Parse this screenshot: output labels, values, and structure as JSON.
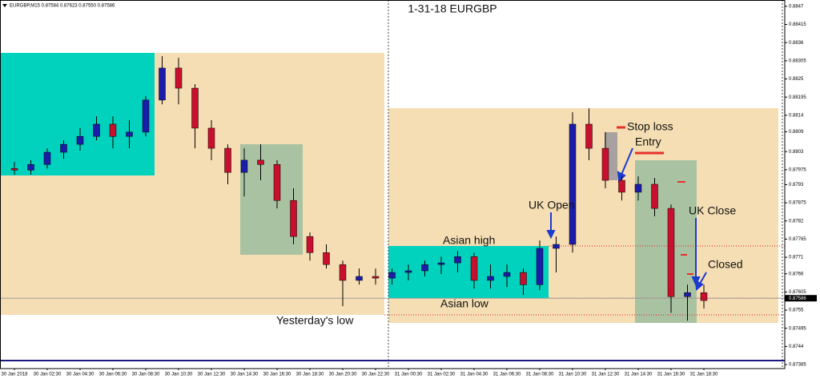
{
  "chart_data": {
    "type": "candlestick",
    "header": "EURGBP,M15  0.87584 0.87623 0.87550 0.87586",
    "title": "1-31-18  EURGBP",
    "categories": [
      "30 Jan 2018",
      null,
      "30 Jan 02:30",
      null,
      "30 Jan 04:30",
      null,
      "30 Jan 06:30",
      null,
      "30 Jan 08:30",
      null,
      "30 Jan 10:30",
      null,
      "30 Jan 12:30",
      null,
      "30 Jan 14:30",
      null,
      "30 Jan 16:30",
      null,
      "30 Jan 18:30",
      null,
      "30 Jan 20:30",
      null,
      "30 Jan 22:30",
      null,
      "31 Jan 00:30",
      null,
      "31 Jan 02:30",
      null,
      "31 Jan 04:30",
      null,
      "31 Jan 06:30",
      null,
      "31 Jan 08:30",
      null,
      "31 Jan 10:30",
      null,
      "31 Jan 12:30",
      null,
      "31 Jan 14:30",
      null,
      "31 Jan 16:30",
      null,
      "31 Jan 18:30"
    ],
    "open": [
      0.87979,
      0.87974,
      0.87991,
      0.88028,
      0.88052,
      0.88076,
      0.88113,
      0.88076,
      0.88089,
      0.88186,
      0.88283,
      0.88222,
      0.88101,
      0.8804,
      0.87967,
      0.88004,
      0.87991,
      0.87882,
      0.87773,
      0.87724,
      0.87688,
      0.8764,
      0.87652,
      0.87647,
      0.87664,
      0.87669,
      0.87688,
      0.87693,
      0.87712,
      0.8764,
      0.87652,
      0.87664,
      0.87627,
      0.87737,
      0.87749,
      0.88113,
      0.8804,
      0.87943,
      0.87907,
      0.87931,
      0.87858,
      0.87591,
      0.87603
    ],
    "high": [
      0.87999,
      0.88004,
      0.8804,
      0.88064,
      0.88101,
      0.88137,
      0.88137,
      0.88125,
      0.88198,
      0.88319,
      0.88314,
      0.88234,
      0.88125,
      0.88052,
      0.8804,
      0.88052,
      0.88004,
      0.87919,
      0.87785,
      0.87749,
      0.877,
      0.87676,
      0.87676,
      0.87676,
      0.87688,
      0.877,
      0.87712,
      0.87729,
      0.87724,
      0.87688,
      0.87688,
      0.87676,
      0.87761,
      0.87773,
      0.88149,
      0.88161,
      0.88089,
      0.87955,
      0.87955,
      0.8795,
      0.8787,
      0.87627,
      0.87627
    ],
    "low": [
      0.8796,
      0.8796,
      0.87979,
      0.88008,
      0.88033,
      0.88064,
      0.8804,
      0.8804,
      0.88076,
      0.88173,
      0.88173,
      0.8804,
      0.88004,
      0.87931,
      0.87894,
      0.87943,
      0.87858,
      0.87749,
      0.877,
      0.87676,
      0.87562,
      0.87627,
      0.87627,
      0.87627,
      0.8764,
      0.87652,
      0.87659,
      0.87664,
      0.87615,
      0.87615,
      0.8762,
      0.87596,
      0.8761,
      0.87664,
      0.87724,
      0.88004,
      0.87919,
      0.87882,
      0.87882,
      0.87834,
      0.87542,
      0.87518,
      0.87555
    ],
    "close": [
      0.87974,
      0.87991,
      0.88028,
      0.88052,
      0.88076,
      0.88113,
      0.88076,
      0.88089,
      0.88186,
      0.88283,
      0.88222,
      0.88101,
      0.8804,
      0.87967,
      0.88004,
      0.87991,
      0.87882,
      0.87773,
      0.87724,
      0.87688,
      0.8764,
      0.87652,
      0.87647,
      0.87664,
      0.87669,
      0.87688,
      0.87693,
      0.87712,
      0.8764,
      0.87652,
      0.87664,
      0.87627,
      0.87737,
      0.87749,
      0.88113,
      0.8804,
      0.87943,
      0.87907,
      0.87931,
      0.87858,
      0.87591,
      0.87603,
      0.87579
    ],
    "up_color": "#1c1caa",
    "down_color": "#c8102e",
    "ylim": [
      0.87373,
      0.88489
    ],
    "yticks": [
      0.8847,
      0.88415,
      0.8836,
      0.88305,
      0.8825,
      0.88195,
      0.8814,
      0.8809,
      0.8803,
      0.87975,
      0.8793,
      0.87875,
      0.8782,
      0.87765,
      0.8771,
      0.8766,
      0.87605,
      0.8755,
      0.87495,
      0.8744,
      0.87385
    ],
    "current_price": 0.87586,
    "annotations": [
      "Stop loss",
      "Entry",
      "UK Open",
      "Asian high",
      "Asian low",
      "Yesterday's low",
      "UK Close",
      "Closed"
    ]
  }
}
